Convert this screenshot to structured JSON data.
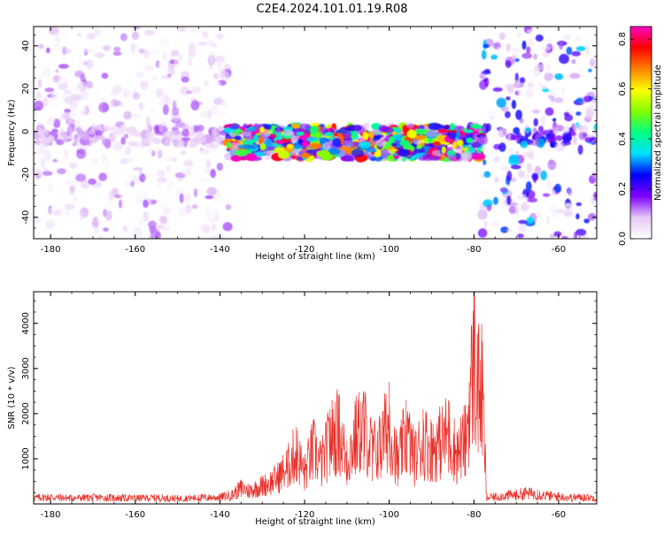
{
  "title": "C2E4.2024.101.01.19.R08",
  "chart_data": [
    {
      "type": "heatmap",
      "xlabel": "Height of straight line (km)",
      "ylabel": "Frequency (Hz)",
      "xlim": [
        -184,
        -51
      ],
      "ylim": [
        -50,
        49
      ],
      "x_ticks": [
        "-180",
        "-160",
        "-140",
        "-120",
        "-100",
        "-80",
        "-60"
      ],
      "y_ticks": [
        "40",
        "20",
        "0",
        "-20",
        "-40"
      ],
      "colorbar": {
        "label": "Normalized spectral amplitude",
        "range": [
          0,
          0.85
        ],
        "ticks": [
          "0.0",
          "0.2",
          "0.4",
          "0.6",
          "0.8"
        ],
        "colormap": [
          "#ffffff",
          "#e6c8f5",
          "#7f00ff",
          "#0000ff",
          "#00e0ff",
          "#00ff80",
          "#80ff00",
          "#ffff00",
          "#ff8000",
          "#ff0000",
          "#ff00c0"
        ]
      },
      "regions": [
        {
          "x": [
            -184,
            -138
          ],
          "frequency_hz": [
            -50,
            49
          ],
          "character": "scattered noise",
          "peak_amplitude": 0.15
        },
        {
          "x": [
            -138,
            -78
          ],
          "frequency_hz": [
            -12,
            2
          ],
          "character": "signal band centred near -5 Hz",
          "peak_amplitude": 0.8
        },
        {
          "x": [
            -78,
            -51
          ],
          "frequency_hz": [
            -50,
            49
          ],
          "character": "scattered noise with weak band near -2 Hz",
          "peak_amplitude": 0.35
        }
      ],
      "grid": false
    },
    {
      "type": "line",
      "xlabel": "Height of straight line (km)",
      "ylabel": "SNR (10 * v/v)",
      "xlim": [
        -184,
        -51
      ],
      "ylim": [
        0,
        4700
      ],
      "x_ticks": [
        "-180",
        "-160",
        "-140",
        "-120",
        "-100",
        "-80",
        "-60"
      ],
      "y_ticks": [
        "4000",
        "3000",
        "2000",
        "1000"
      ],
      "color": "#e8302a",
      "x": [
        -184,
        -180,
        -175,
        -170,
        -165,
        -160,
        -155,
        -150,
        -145,
        -140,
        -137,
        -135,
        -133,
        -130,
        -128,
        -126,
        -124,
        -122,
        -120,
        -118,
        -116,
        -114,
        -112,
        -110,
        -108,
        -106,
        -104,
        -102,
        -100,
        -98,
        -96,
        -94,
        -92,
        -90,
        -88,
        -86,
        -84,
        -82,
        -80,
        -79,
        -78,
        -77,
        -75,
        -72,
        -70,
        -68,
        -65,
        -62,
        -60,
        -57,
        -54,
        -51
      ],
      "y": [
        200,
        220,
        190,
        210,
        200,
        190,
        200,
        180,
        200,
        220,
        300,
        520,
        430,
        600,
        700,
        900,
        1200,
        1700,
        1000,
        1800,
        1300,
        2100,
        2400,
        1400,
        2200,
        2500,
        1700,
        1900,
        2700,
        1300,
        2300,
        1500,
        2100,
        1800,
        2000,
        2300,
        1600,
        2100,
        4700,
        3800,
        3600,
        200,
        230,
        280,
        300,
        350,
        320,
        260,
        250,
        210,
        220,
        200
      ],
      "grid": false
    }
  ]
}
